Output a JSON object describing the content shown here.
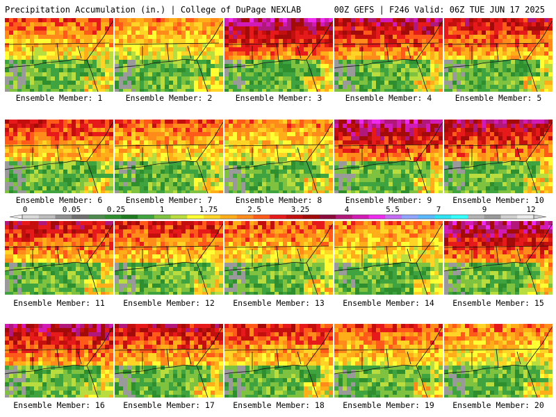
{
  "header": {
    "left_title": "Precipitation Accumulation (in.) | College of DuPage NEXLAB",
    "right_title": "00Z GEFS | F246 Valid: 06Z TUE JUN 17 2025"
  },
  "colorbar": {
    "labels": [
      "0",
      "0.05",
      "0.25",
      "1",
      "1.75",
      "2.5",
      "3.25",
      "4",
      "5.5",
      "7",
      "9",
      "12"
    ],
    "colors": [
      "#d9d9d9",
      "#bdbdbd",
      "#8e8e8e",
      "#6f6f6f",
      "#4e8a4e",
      "#2f8f2f",
      "#1f7a1f",
      "#3fa33f",
      "#7ec23f",
      "#b9dc3f",
      "#ffff33",
      "#ffd426",
      "#ffae1a",
      "#ff8c1a",
      "#ff5a1a",
      "#e61a1a",
      "#c40f0f",
      "#a30a0a",
      "#8c0a3a",
      "#b2187a",
      "#d21bb4",
      "#ee2aee",
      "#c36bf2",
      "#8fa3ff",
      "#5ab8ff",
      "#2ee4f2",
      "#33ffff",
      "#b3b3b3",
      "#999999",
      "#cfcfcf",
      "#ebebeb"
    ]
  },
  "members": [
    {
      "label": "Ensemble Member: 1"
    },
    {
      "label": "Ensemble Member: 2"
    },
    {
      "label": "Ensemble Member: 3"
    },
    {
      "label": "Ensemble Member: 4"
    },
    {
      "label": "Ensemble Member: 5"
    },
    {
      "label": "Ensemble Member: 6"
    },
    {
      "label": "Ensemble Member: 7"
    },
    {
      "label": "Ensemble Member: 8"
    },
    {
      "label": "Ensemble Member: 9"
    },
    {
      "label": "Ensemble Member: 10"
    },
    {
      "label": "Ensemble Member: 11"
    },
    {
      "label": "Ensemble Member: 12"
    },
    {
      "label": "Ensemble Member: 13"
    },
    {
      "label": "Ensemble Member: 14"
    },
    {
      "label": "Ensemble Member: 15"
    },
    {
      "label": "Ensemble Member: 16"
    },
    {
      "label": "Ensemble Member: 17"
    },
    {
      "label": "Ensemble Member: 18"
    },
    {
      "label": "Ensemble Member: 19"
    },
    {
      "label": "Ensemble Member: 20"
    }
  ]
}
